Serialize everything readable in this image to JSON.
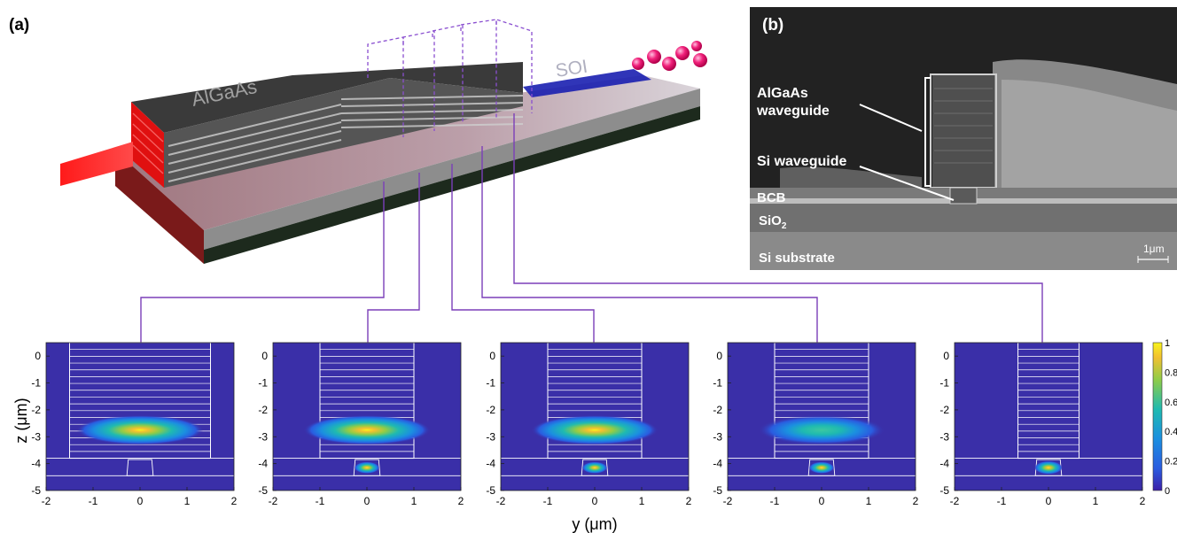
{
  "panel_a": {
    "label": "(a)",
    "waveguide_label": "AlGaAs",
    "soi_label": "SOI"
  },
  "panel_b": {
    "label": "(b)",
    "labels": {
      "algaas_line1": "AlGaAs",
      "algaas_line2": "waveguide",
      "si_waveguide": "Si waveguide",
      "bcb": "BCB",
      "sio2_main": "SiO",
      "sio2_sub": "2",
      "si_substrate": "Si substrate",
      "scale_bar": "1μm"
    }
  },
  "colors": {
    "background": "#3a2fa8",
    "outline": "#ffffff",
    "connector": "#7b3fb8"
  },
  "mode_plots": {
    "ylabel": "z (μm)",
    "xlabel": "y (μm)",
    "x_ticks": [
      "-2",
      "-1",
      "0",
      "1",
      "2"
    ],
    "y_ticks": [
      "0",
      "-1",
      "-2",
      "-3",
      "-4",
      "-5"
    ],
    "xlim": [
      -2,
      2
    ],
    "ylim": [
      -5,
      0.5
    ],
    "colorbar_ticks": [
      "1",
      "0.8",
      "0.6",
      "0.4",
      "0.2",
      "0"
    ],
    "panels": [
      {
        "algaas_half_width": 1.5,
        "mode": "algaas",
        "mode_strength": 1.0
      },
      {
        "algaas_half_width": 1.0,
        "mode": "algaas",
        "mode_strength": 1.0
      },
      {
        "algaas_half_width": 1.0,
        "mode": "algaas",
        "mode_strength": 1.0
      },
      {
        "algaas_half_width": 1.0,
        "mode": "algaas",
        "mode_strength": 0.75
      },
      {
        "algaas_half_width": 0.65,
        "mode": "si",
        "mode_strength": 1.0
      }
    ]
  }
}
